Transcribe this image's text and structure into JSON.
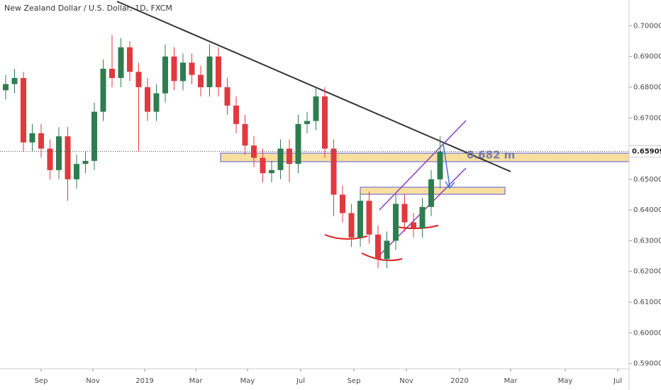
{
  "chart_data": {
    "type": "candlestick",
    "title": "New Zealand Dollar / U.S. Dollar, 1D, FXCM",
    "categories": [
      null,
      null,
      null,
      null,
      null,
      null,
      null,
      null,
      null,
      null,
      null,
      null,
      null,
      null,
      null,
      null,
      null,
      null,
      null,
      null,
      null,
      null,
      null,
      null,
      null,
      null,
      null,
      null,
      null,
      null,
      null,
      null,
      null,
      null,
      null,
      null,
      null,
      null,
      null,
      null,
      null,
      null,
      null,
      null,
      null,
      null,
      null,
      null,
      null,
      null
    ],
    "open": [
      0.679,
      0.681,
      0.683,
      0.662,
      0.665,
      0.66,
      0.653,
      0.664,
      0.65,
      0.655,
      0.656,
      0.672,
      0.686,
      0.683,
      0.693,
      0.685,
      0.68,
      0.672,
      0.678,
      0.69,
      0.682,
      0.688,
      0.684,
      0.68,
      0.69,
      0.68,
      0.674,
      0.668,
      0.661,
      0.657,
      0.652,
      0.653,
      0.66,
      0.655,
      0.668,
      0.669,
      0.677,
      0.66,
      0.645,
      0.639,
      0.631,
      0.643,
      0.632,
      0.624,
      0.63,
      0.642,
      0.636,
      0.634,
      0.641,
      0.65
    ],
    "high": [
      0.684,
      0.686,
      0.685,
      0.668,
      0.668,
      0.663,
      0.667,
      0.667,
      0.658,
      0.659,
      0.675,
      0.689,
      0.697,
      0.696,
      0.695,
      0.688,
      0.683,
      0.681,
      0.694,
      0.693,
      0.691,
      0.691,
      0.687,
      0.694,
      0.693,
      0.683,
      0.677,
      0.671,
      0.664,
      0.66,
      0.656,
      0.663,
      0.663,
      0.671,
      0.672,
      0.68,
      0.68,
      0.663,
      0.648,
      0.642,
      0.646,
      0.646,
      0.635,
      0.633,
      0.645,
      0.645,
      0.639,
      0.644,
      0.653,
      0.664
    ],
    "low": [
      0.676,
      0.678,
      0.659,
      0.659,
      0.657,
      0.65,
      0.65,
      0.643,
      0.647,
      0.652,
      0.653,
      0.669,
      0.68,
      0.68,
      0.682,
      0.659,
      0.669,
      0.669,
      0.675,
      0.679,
      0.679,
      0.681,
      0.677,
      0.677,
      0.677,
      0.671,
      0.665,
      0.658,
      0.654,
      0.649,
      0.649,
      0.65,
      0.649,
      0.652,
      0.665,
      0.666,
      0.657,
      0.638,
      0.636,
      0.628,
      0.628,
      0.629,
      0.621,
      0.621,
      0.627,
      0.633,
      0.631,
      0.631,
      0.638,
      0.647
    ],
    "close": [
      0.681,
      0.683,
      0.662,
      0.665,
      0.66,
      0.653,
      0.664,
      0.65,
      0.655,
      0.656,
      0.672,
      0.686,
      0.683,
      0.693,
      0.685,
      0.68,
      0.672,
      0.678,
      0.69,
      0.682,
      0.688,
      0.684,
      0.68,
      0.69,
      0.68,
      0.674,
      0.668,
      0.661,
      0.657,
      0.652,
      0.653,
      0.66,
      0.655,
      0.668,
      0.669,
      0.677,
      0.66,
      0.645,
      0.639,
      0.631,
      0.643,
      0.632,
      0.624,
      0.63,
      0.642,
      0.636,
      0.634,
      0.641,
      0.65,
      0.659
    ],
    "up_color": "#2e7d4f",
    "down_color": "#e0393e",
    "xlim": [
      -0.64,
      70.32
    ],
    "xticks": [
      {
        "value": 4,
        "label": "Sep"
      },
      {
        "value": 9.84,
        "label": "Nov"
      },
      {
        "value": 15.68,
        "label": "2019"
      },
      {
        "value": 21.44,
        "label": "Mar"
      },
      {
        "value": 27.28,
        "label": "May"
      },
      {
        "value": 33.28,
        "label": "Jul"
      },
      {
        "value": 39.28,
        "label": "Sep"
      },
      {
        "value": 45.2,
        "label": "Nov"
      },
      {
        "value": 51.2,
        "label": "2020"
      },
      {
        "value": 56.96,
        "label": "Mar"
      },
      {
        "value": 63.12,
        "label": "May"
      },
      {
        "value": 69.04,
        "label": "Jul"
      }
    ],
    "ylim": [
      0.5883,
      0.7084
    ],
    "yticks": [
      {
        "value": 0.59,
        "label": "0.59000"
      },
      {
        "value": 0.6,
        "label": "0.60000"
      },
      {
        "value": 0.61,
        "label": "0.61000"
      },
      {
        "value": 0.62,
        "label": "0.62000"
      },
      {
        "value": 0.63,
        "label": "0.63000"
      },
      {
        "value": 0.64,
        "label": "0.64000"
      },
      {
        "value": 0.65,
        "label": "0.65000"
      },
      {
        "value": 0.66,
        "label": "0.66000"
      },
      {
        "value": 0.67,
        "label": "0.67000"
      },
      {
        "value": 0.68,
        "label": "0.68000"
      },
      {
        "value": 0.69,
        "label": "0.69000"
      },
      {
        "value": 0.7,
        "label": "0.70000"
      }
    ],
    "current_price": 0.65909,
    "annotation": "0.682 m",
    "grid": false
  }
}
